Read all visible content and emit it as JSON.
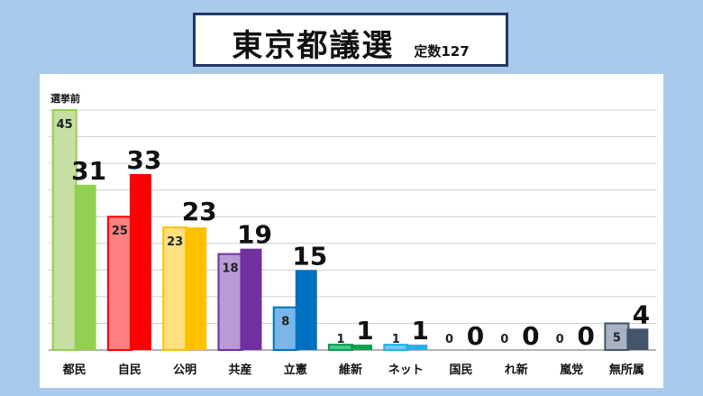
{
  "header": {
    "title": "東京都議選",
    "subtitle": "定数127"
  },
  "chart_data": {
    "type": "bar",
    "title": "東京都議選",
    "subtitle": "定数127",
    "xlabel": "",
    "ylabel": "",
    "before_label": "選挙前",
    "ylim": [
      0,
      45
    ],
    "grid": true,
    "categories": [
      "都民",
      "自民",
      "公明",
      "共産",
      "立憲",
      "維新",
      "ネット",
      "国民",
      "れ新",
      "嵐党",
      "無所属"
    ],
    "series": [
      {
        "values": [
          45,
          25,
          23,
          18,
          8,
          1,
          1,
          0,
          0,
          0,
          5
        ]
      },
      {
        "values": [
          31,
          33,
          23,
          19,
          15,
          1,
          1,
          0,
          0,
          0,
          4
        ]
      }
    ],
    "colors": {
      "before": [
        "#c6e0a4",
        "#ff8080",
        "#ffe080",
        "#b89ad6",
        "#7ab6e8",
        "#4cc48a",
        "#70c8f0",
        "#cccccc",
        "#cccccc",
        "#cccccc",
        "#a8b4c4"
      ],
      "before_border": [
        "#92d050",
        "#ff0000",
        "#ffc000",
        "#7030a0",
        "#0070c0",
        "#00a050",
        "#28aee6",
        "#999999",
        "#999999",
        "#999999",
        "#44546a"
      ],
      "after": [
        "#92d050",
        "#ff0000",
        "#ffc000",
        "#7030a0",
        "#0070c0",
        "#00a050",
        "#28aee6",
        "#999999",
        "#999999",
        "#999999",
        "#44546a"
      ]
    }
  }
}
